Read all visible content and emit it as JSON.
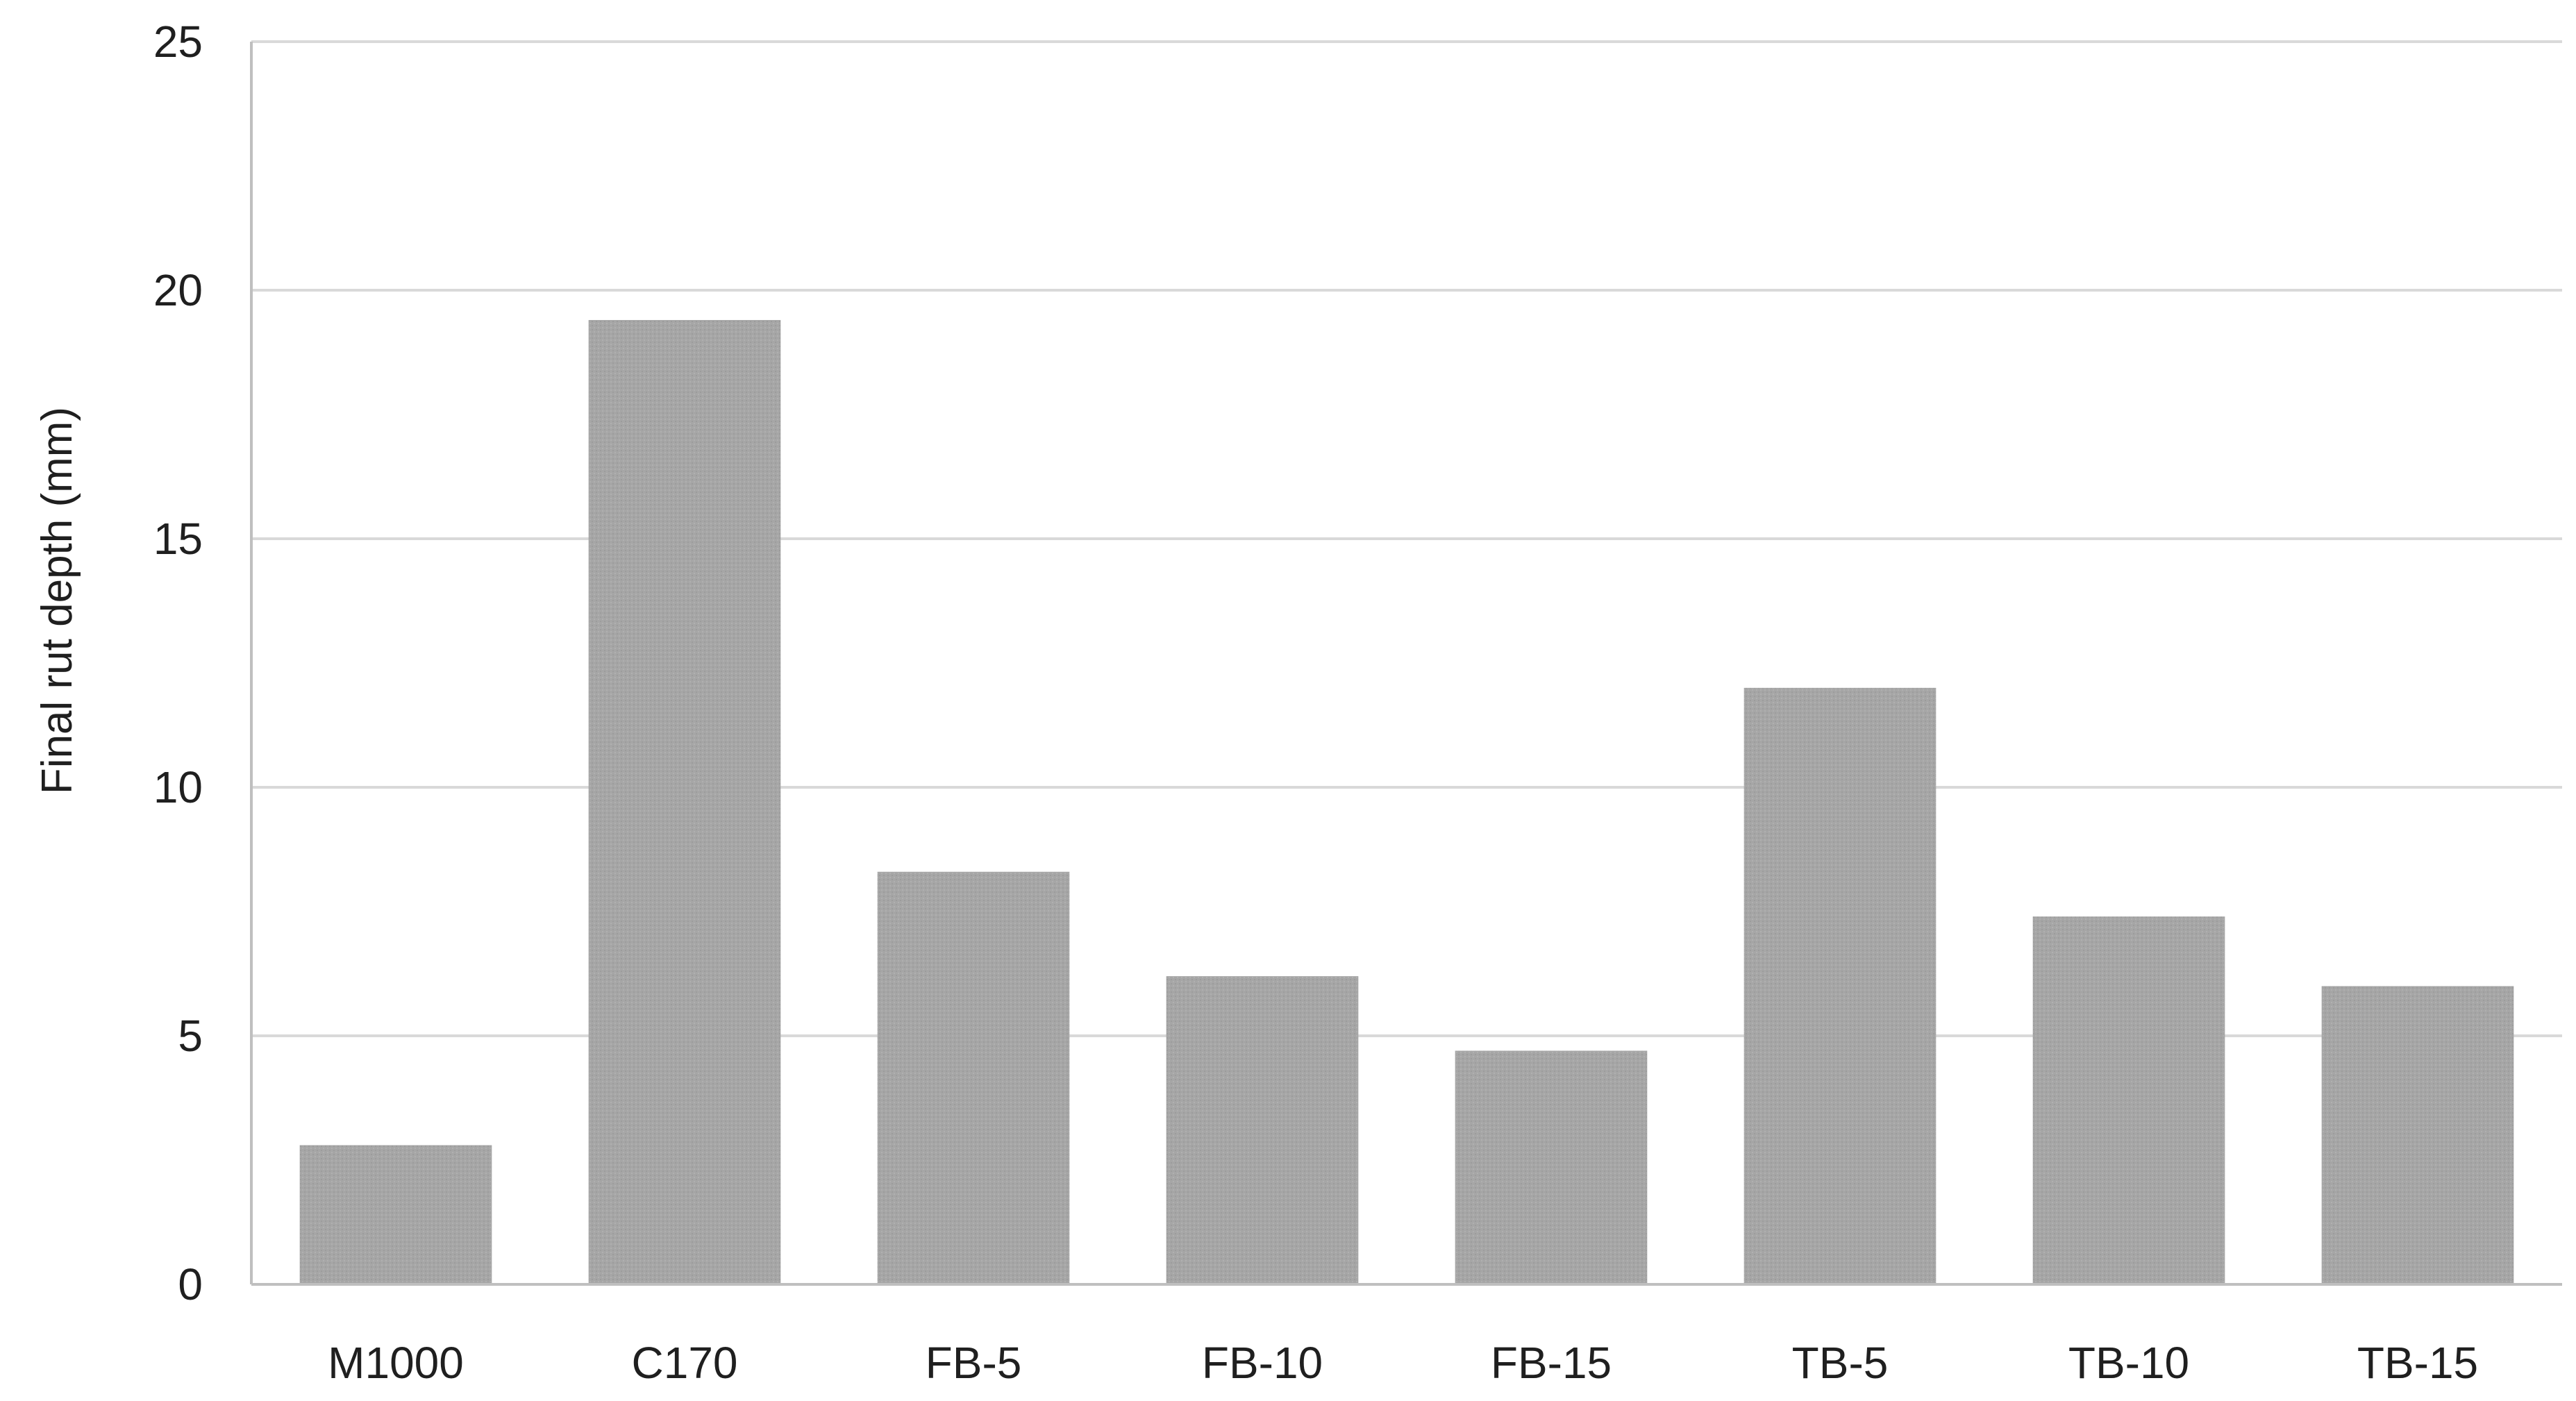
{
  "chart_data": {
    "type": "bar",
    "title": "",
    "xlabel": "",
    "ylabel": "Final rut depth (mm)",
    "categories": [
      "M1000",
      "C170",
      "FB-5",
      "FB-10",
      "FB-15",
      "TB-5",
      "TB-10",
      "TB-15"
    ],
    "values": [
      2.8,
      19.4,
      8.3,
      6.2,
      4.7,
      12.0,
      7.4,
      6.0
    ],
    "ylim": [
      0,
      25
    ],
    "yticks": [
      0,
      5,
      10,
      15,
      20,
      25
    ],
    "grid": true,
    "legend": "none",
    "colors": {
      "bar": "#a6a6a6",
      "gridline": "#d9d9d9",
      "axis": "#bfbfbf",
      "text": "#1f1f1f"
    }
  }
}
